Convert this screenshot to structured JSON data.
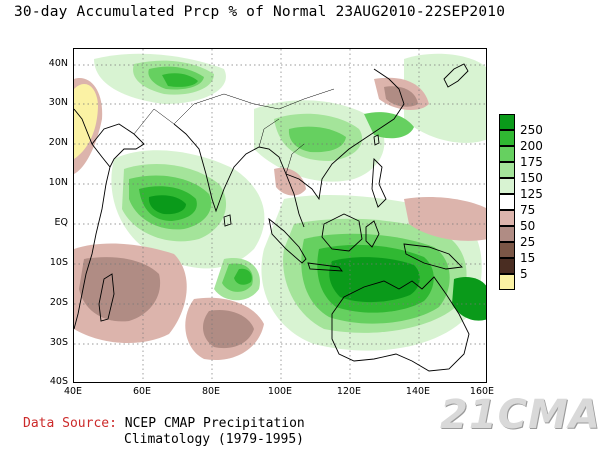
{
  "title": "30-day Accumulated Prcp % of Normal 23AUG2010-22SEP2010",
  "axes": {
    "lat_ticks": [
      "40N",
      "30N",
      "20N",
      "10N",
      "EQ",
      "10S",
      "20S",
      "30S",
      "40S"
    ],
    "lon_ticks": [
      "40E",
      "60E",
      "80E",
      "100E",
      "120E",
      "140E",
      "160E"
    ],
    "lat_range": [
      -40,
      45
    ],
    "lon_range": [
      40,
      160
    ]
  },
  "legend": {
    "levels": [
      "250",
      "200",
      "175",
      "150",
      "125",
      "75",
      "50",
      "25",
      "15",
      "5"
    ],
    "colors": [
      "#0a9a1a",
      "#30b832",
      "#66d060",
      "#a4e49a",
      "#d8f3d2",
      "#ffffff",
      "#dcb4ac",
      "#b08c84",
      "#7a5646",
      "#4a2d22",
      "#fbf2a4"
    ]
  },
  "source": {
    "key": "Data Source:",
    "line1": "NCEP CMAP Precipitation",
    "line2": "Climatology (1979-1995)"
  },
  "watermark": "21CMA"
}
